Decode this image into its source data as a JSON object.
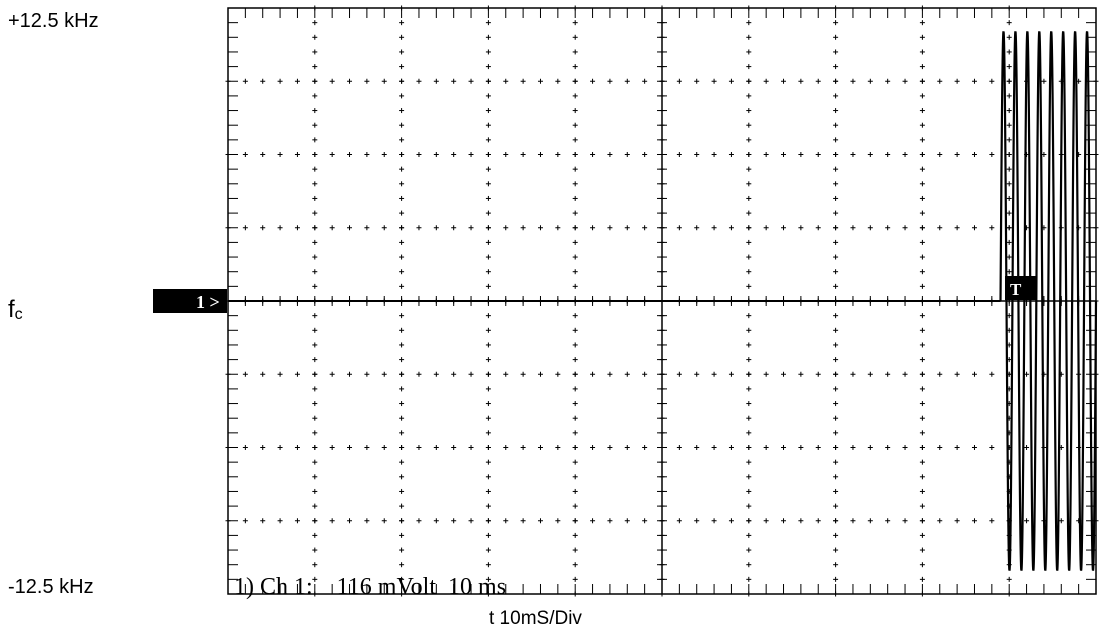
{
  "labels": {
    "top": "+12.5 kHz",
    "bottom": "-12.5 kHz",
    "center_main": "f",
    "center_sub": "c",
    "xaxis": "t 10mS/Div"
  },
  "markers": {
    "channel": "1 >",
    "trigger": "T"
  },
  "readout": "1) Ch 1:    116 mVolt  10 ms",
  "chart_data": {
    "type": "line",
    "xlabel": "t 10mS/Div",
    "ylabel": "",
    "ylim": [
      -12.5,
      12.5
    ],
    "y_unit": "kHz",
    "xlim": [
      0,
      100
    ],
    "x_unit": "ms",
    "grid": true,
    "divisions": {
      "x": 10,
      "y": 8
    },
    "series": [
      {
        "description_x": "before trigger: flat at fc",
        "flat_until_ms": 89,
        "value_before": 0,
        "burst_start_ms": 89,
        "burst_end_ms": 100,
        "burst_peak_cycles": 8,
        "burst_amplitude": 11.5
      }
    ],
    "colors": {
      "trace": "#000000",
      "background": "#ffffff"
    }
  }
}
